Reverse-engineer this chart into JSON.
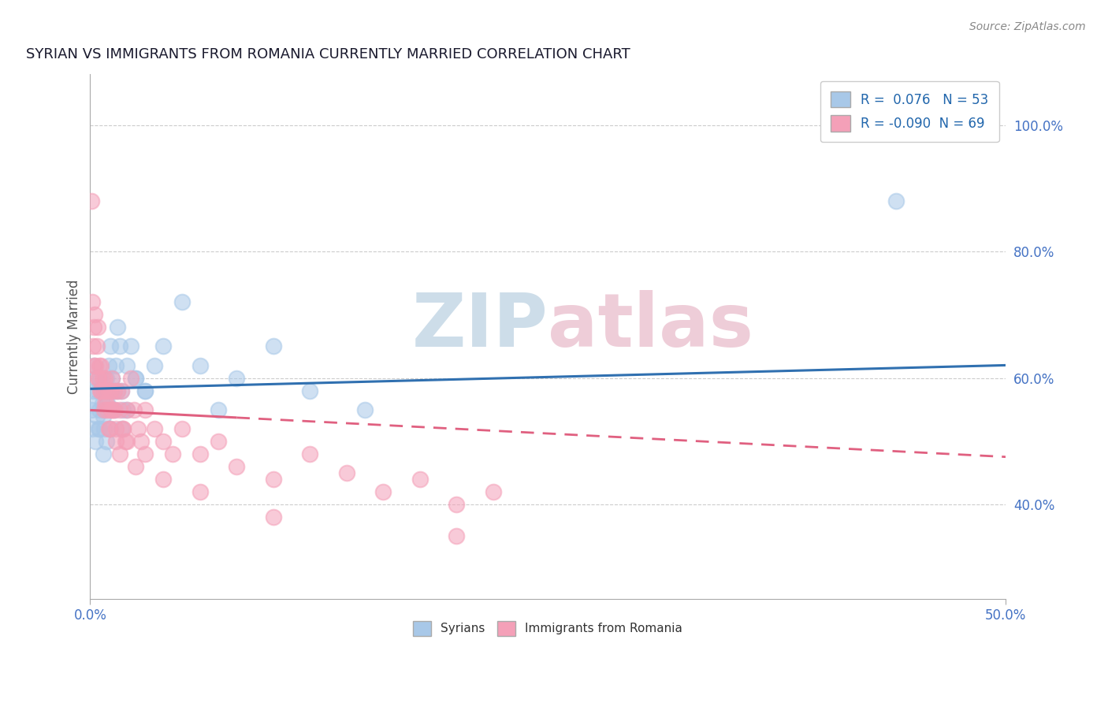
{
  "title": "SYRIAN VS IMMIGRANTS FROM ROMANIA CURRENTLY MARRIED CORRELATION CHART",
  "source": "Source: ZipAtlas.com",
  "ylabel_label": "Currently Married",
  "xlim": [
    0.0,
    50.0
  ],
  "ylim": [
    25.0,
    108.0
  ],
  "syrians_R": 0.076,
  "syrians_N": 53,
  "romania_R": -0.09,
  "romania_N": 69,
  "blue_color": "#a8c8e8",
  "pink_color": "#f4a0b8",
  "blue_line": "#3070b0",
  "pink_line": "#e06080",
  "watermark_zip_color": "#b8cfe0",
  "watermark_atlas_color": "#e8b8c8",
  "yticks": [
    40,
    60,
    80,
    100
  ],
  "syrians_x": [
    0.05,
    0.1,
    0.15,
    0.2,
    0.25,
    0.3,
    0.35,
    0.4,
    0.45,
    0.5,
    0.55,
    0.6,
    0.65,
    0.7,
    0.75,
    0.8,
    0.85,
    0.9,
    0.95,
    1.0,
    1.1,
    1.2,
    1.3,
    1.4,
    1.5,
    1.6,
    1.7,
    1.8,
    2.0,
    2.2,
    2.5,
    3.0,
    3.5,
    4.0,
    5.0,
    6.0,
    7.0,
    8.0,
    10.0,
    12.0,
    15.0,
    44.0,
    0.3,
    0.5,
    0.7,
    0.9,
    1.1,
    1.3,
    1.5,
    1.7,
    2.0,
    2.5,
    3.0
  ],
  "syrians_y": [
    55,
    52,
    58,
    62,
    56,
    60,
    54,
    58,
    52,
    55,
    60,
    58,
    56,
    54,
    52,
    55,
    58,
    60,
    56,
    62,
    65,
    60,
    58,
    62,
    68,
    65,
    58,
    55,
    62,
    65,
    60,
    58,
    62,
    65,
    72,
    62,
    55,
    60,
    65,
    58,
    55,
    88,
    50,
    52,
    48,
    50,
    52,
    55,
    58,
    52,
    55,
    60,
    58
  ],
  "romania_x": [
    0.05,
    0.1,
    0.15,
    0.2,
    0.25,
    0.3,
    0.35,
    0.4,
    0.45,
    0.5,
    0.55,
    0.6,
    0.65,
    0.7,
    0.75,
    0.8,
    0.85,
    0.9,
    0.95,
    1.0,
    1.05,
    1.1,
    1.15,
    1.2,
    1.25,
    1.3,
    1.35,
    1.4,
    1.5,
    1.6,
    1.7,
    1.8,
    1.9,
    2.0,
    2.2,
    2.4,
    2.6,
    2.8,
    3.0,
    3.5,
    4.0,
    4.5,
    5.0,
    6.0,
    7.0,
    8.0,
    10.0,
    12.0,
    14.0,
    16.0,
    18.0,
    20.0,
    22.0,
    0.2,
    0.4,
    0.6,
    0.8,
    1.0,
    1.2,
    1.4,
    1.6,
    1.8,
    2.0,
    2.5,
    3.0,
    4.0,
    6.0,
    10.0,
    20.0
  ],
  "romania_y": [
    88,
    72,
    65,
    68,
    70,
    62,
    65,
    68,
    60,
    62,
    58,
    62,
    60,
    58,
    55,
    60,
    58,
    56,
    55,
    58,
    52,
    55,
    58,
    60,
    55,
    58,
    55,
    52,
    58,
    55,
    58,
    52,
    50,
    55,
    60,
    55,
    52,
    50,
    55,
    52,
    50,
    48,
    52,
    48,
    50,
    46,
    44,
    48,
    45,
    42,
    44,
    40,
    42,
    62,
    60,
    58,
    56,
    52,
    55,
    50,
    48,
    52,
    50,
    46,
    48,
    44,
    42,
    38,
    35
  ]
}
